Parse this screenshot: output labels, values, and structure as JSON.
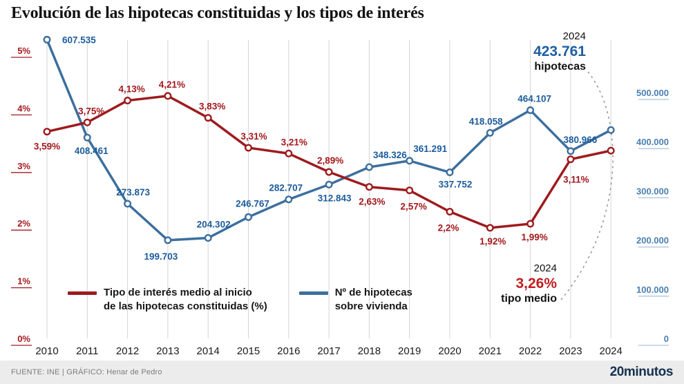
{
  "title": "Evolución de las hipotecas constituidas y los tipos de interés",
  "colors": {
    "rate_line": "#9e1b1e",
    "rate_label": "#a3191d",
    "count_line": "#3c6f9e",
    "count_label": "#1c5c9c",
    "blue_accent": "#1d5fa0",
    "red_accent": "#c01d22",
    "gridline": "#d4d4d4"
  },
  "legend": {
    "rate_line1": "Tipo de interés medio al inicio",
    "rate_line2": "de las hipotecas constituidas (%)",
    "count_line1": "Nº de hipotecas",
    "count_line2": "sobre vivienda"
  },
  "annotations": {
    "top": {
      "year": "2024",
      "value": "423.761",
      "caption": "hipotecas"
    },
    "bottom": {
      "year": "2024",
      "value": "3,26%",
      "caption": "tipo medio"
    }
  },
  "footer": {
    "source": "FUENTE: INE  |  GRÁFICO: Henar de Pedro",
    "brand": "20minutos"
  },
  "chart_data": {
    "type": "line",
    "title": "Evolución de las hipotecas constituidas y los tipos de interés",
    "x": [
      "2010",
      "2011",
      "2012",
      "2013",
      "2014",
      "2015",
      "2016",
      "2017",
      "2018",
      "2019",
      "2020",
      "2021",
      "2022",
      "2023",
      "2024"
    ],
    "series": [
      {
        "key": "count",
        "name": "Nº de hipotecas sobre vivienda",
        "axis": "right",
        "color": "#3c6f9e",
        "label_color": "#1c5c9c",
        "values": [
          607535,
          408461,
          273873,
          199703,
          204302,
          246767,
          282707,
          312843,
          348326,
          361291,
          337752,
          418058,
          464107,
          380966,
          423761
        ],
        "labels": [
          "607.535",
          "408.461",
          "273.873",
          "199.703",
          "204.302",
          "246.767",
          "282.707",
          "312.843",
          "348.326",
          "361.291",
          "337.752",
          "418.058",
          "464.107",
          "380.966",
          ""
        ]
      },
      {
        "key": "rate",
        "name": "Tipo de interés medio al inicio de las hipotecas constituidas (%)",
        "axis": "left",
        "color": "#9e1b1e",
        "label_color": "#a3191d",
        "values": [
          3.59,
          3.75,
          4.13,
          4.21,
          3.83,
          3.31,
          3.21,
          2.89,
          2.63,
          2.57,
          2.2,
          1.92,
          1.99,
          3.11,
          3.26
        ],
        "labels": [
          "3,59%",
          "3,75%",
          "4,13%",
          "4,21%",
          "3,83%",
          "3,31%",
          "3,21%",
          "2,89%",
          "2,63%",
          "2,57%",
          "2,2%",
          "1,92%",
          "1,99%",
          "3,11%",
          ""
        ]
      }
    ],
    "left_axis": {
      "range": [
        0,
        5
      ],
      "tick_values": [
        0,
        1,
        2,
        3,
        4,
        5
      ],
      "tick_labels": [
        "0%",
        "1%",
        "2%",
        "3%",
        "4%",
        "5%"
      ]
    },
    "right_axis": {
      "range": [
        0,
        500000
      ],
      "tick_values": [
        0,
        100000,
        200000,
        300000,
        400000,
        500000
      ],
      "tick_labels": [
        "0",
        "100.000",
        "200.000",
        "300.000",
        "400.000",
        "500.000"
      ]
    },
    "grid": "vertical-per-year",
    "legend_position": "bottom-left-inside"
  }
}
